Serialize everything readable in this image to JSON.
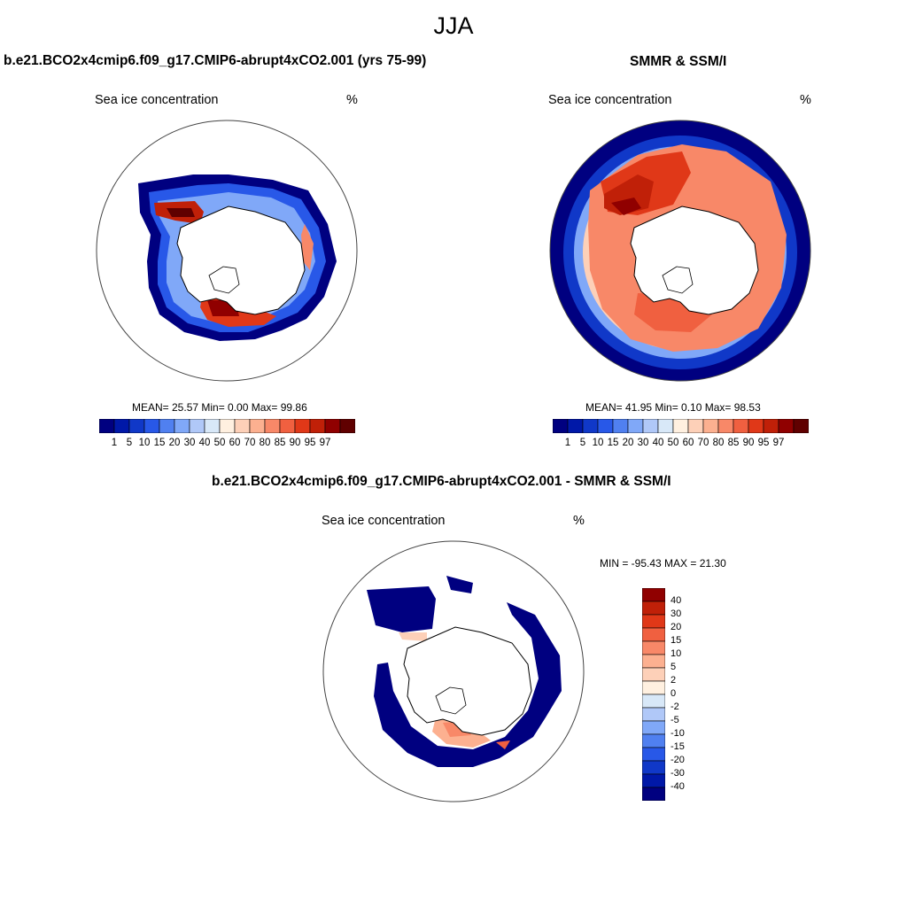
{
  "title": "JJA",
  "colors": {
    "absolute_scale": [
      "#000080",
      "#0018a8",
      "#1038c8",
      "#2858e8",
      "#5080f0",
      "#80a8f8",
      "#b0c8f8",
      "#d8e8f8",
      "#fff0e0",
      "#fdd0b8",
      "#fcb090",
      "#f88868",
      "#f06040",
      "#e03818",
      "#c02008",
      "#900000",
      "#600000"
    ],
    "diff_scale": [
      "#000080",
      "#0018a8",
      "#1038c8",
      "#2858e8",
      "#5080f0",
      "#80a8f8",
      "#b0c8f8",
      "#d8e8f8",
      "#fff0e0",
      "#fdd0b8",
      "#fcb090",
      "#f88868",
      "#f06040",
      "#e03818",
      "#c02008",
      "#900000"
    ]
  },
  "panels": {
    "model": {
      "title": "b.e21.BCO2x4cmip6.f09_g17.CMIP6-abrupt4xCO2.001 (yrs 75-99)",
      "variable": "Sea ice concentration",
      "units": "%",
      "stats": "MEAN=  25.57  Min=   0.00  Max=  99.86",
      "colorbar_labels": [
        "1",
        "5",
        "10",
        "15",
        "20",
        "30",
        "40",
        "50",
        "60",
        "70",
        "80",
        "85",
        "90",
        "95",
        "97"
      ]
    },
    "obs": {
      "title": "SMMR & SSM/I",
      "variable": "Sea ice concentration",
      "units": "%",
      "stats": "MEAN=  41.95  Min=   0.10  Max=  98.53",
      "colorbar_labels": [
        "1",
        "5",
        "10",
        "15",
        "20",
        "30",
        "40",
        "50",
        "60",
        "70",
        "80",
        "85",
        "90",
        "95",
        "97"
      ]
    },
    "diff": {
      "title": "b.e21.BCO2x4cmip6.f09_g17.CMIP6-abrupt4xCO2.001 - SMMR & SSM/I",
      "variable": "Sea ice concentration",
      "units": "%",
      "minmax": "MIN = -95.43 MAX =  21.30",
      "colorbar_labels": [
        "40",
        "30",
        "20",
        "15",
        "10",
        "5",
        "2",
        "0",
        "-2",
        "-5",
        "-10",
        "-15",
        "-20",
        "-30",
        "-40"
      ]
    }
  }
}
